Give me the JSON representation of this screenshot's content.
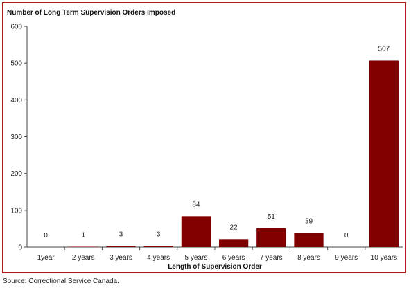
{
  "chart_data": {
    "type": "bar",
    "title": "",
    "ylabel": "Number of Long Term Supervision Orders Imposed",
    "xlabel": "Length of Supervision Order",
    "categories": [
      "1year",
      "2 years",
      "3 years",
      "4 years",
      "5 years",
      "6 years",
      "7 years",
      "8 years",
      "9 years",
      "10 years"
    ],
    "values": [
      0,
      1,
      3,
      3,
      84,
      22,
      51,
      39,
      0,
      507
    ],
    "ylim": [
      0,
      600
    ],
    "yticks": [
      0,
      100,
      200,
      300,
      400,
      500,
      600
    ],
    "bar_color": "#800000",
    "frame_color": "#b01c1c",
    "grid": false,
    "legend": "none"
  },
  "source": "Source: Correctional Service Canada."
}
